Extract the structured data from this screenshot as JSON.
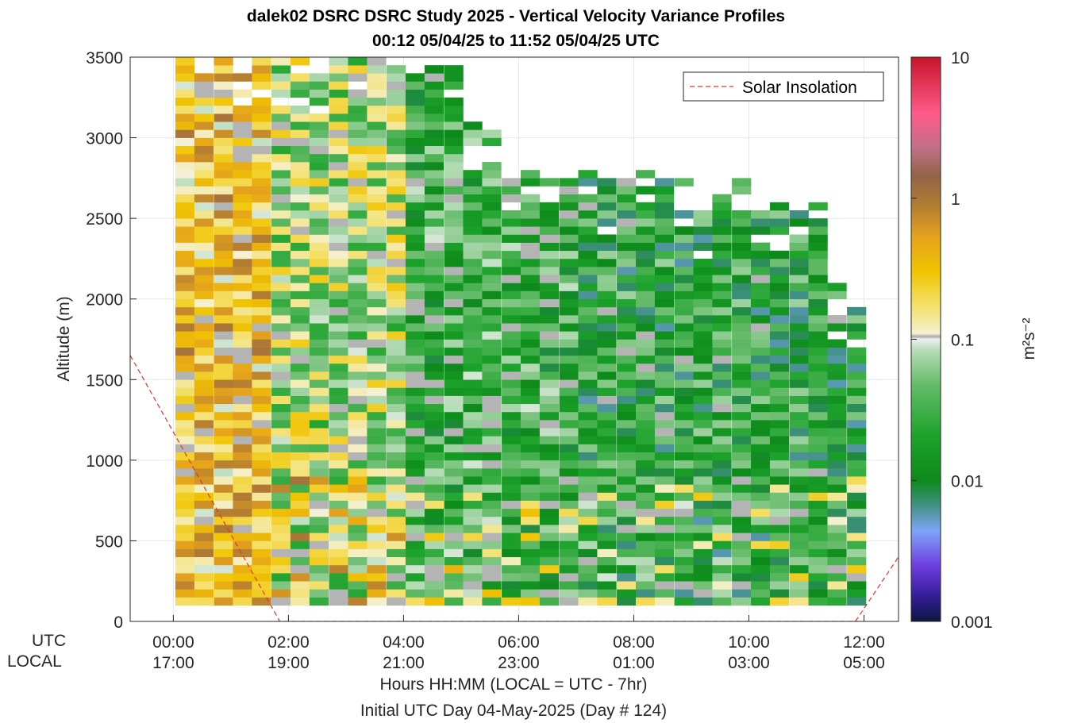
{
  "title_line1": "dalek02 DSRC DSRC Study 2025 - Vertical Velocity Variance Profiles",
  "title_line2": "00:12 05/04/25 to 11:52 05/04/25  UTC",
  "bottom_rows": {
    "utc": "UTC",
    "local": "LOCAL"
  },
  "xlabel_line1": "Hours HH:MM  (LOCAL = UTC - 7hr)",
  "xlabel_line2": "Initial UTC Day 04-May-2025 (Day # 124)",
  "chart_data": {
    "type": "heatmap",
    "title": "dalek02 DSRC DSRC Study 2025 - Vertical Velocity Variance Profiles",
    "ylabel": "Altitude (m)",
    "xlabel": "Hours HH:MM  (LOCAL = UTC - 7hr)",
    "xlim_hours_utc": [
      -0.75,
      12.6
    ],
    "ylim": [
      0,
      3500
    ],
    "yticks": [
      0,
      500,
      1000,
      1500,
      2000,
      2500,
      3000,
      3500
    ],
    "xticks": [
      {
        "hour": 0,
        "utc": "00:00",
        "local": "17:00"
      },
      {
        "hour": 2,
        "utc": "02:00",
        "local": "19:00"
      },
      {
        "hour": 4,
        "utc": "04:00",
        "local": "21:00"
      },
      {
        "hour": 6,
        "utc": "06:00",
        "local": "23:00"
      },
      {
        "hour": 8,
        "utc": "08:00",
        "local": "01:00"
      },
      {
        "hour": 10,
        "utc": "10:00",
        "local": "03:00"
      },
      {
        "hour": 12,
        "utc": "12:00",
        "local": "05:00"
      }
    ],
    "colorbar": {
      "label": "m²s⁻²",
      "scale": "log",
      "range": [
        0.001,
        10
      ],
      "tick_labels": [
        "0.001",
        "0.01",
        "0.1",
        "1",
        "10"
      ],
      "tick_values": [
        0.001,
        0.01,
        0.1,
        1,
        10
      ]
    },
    "legend": {
      "position": "top-right",
      "entries": [
        {
          "name": "Solar Insolation",
          "color": "#e8302a",
          "style": "dashed"
        }
      ]
    },
    "grid": true,
    "profile_times_utc_hours": [
      0.2,
      0.53,
      0.87,
      1.2,
      1.53,
      1.87,
      2.2,
      2.53,
      2.87,
      3.2,
      3.53,
      3.87,
      4.2,
      4.53,
      4.87,
      5.2,
      5.53,
      5.87,
      6.2,
      6.53,
      6.87,
      7.2,
      7.53,
      7.87,
      8.2,
      8.53,
      8.87,
      9.2,
      9.53,
      9.87,
      10.2,
      10.53,
      10.87,
      11.2,
      11.53,
      11.87
    ],
    "profile_top_altitude_m": [
      3500,
      3500,
      3500,
      3500,
      3500,
      3500,
      3500,
      3500,
      3500,
      3500,
      3500,
      3450,
      3450,
      3450,
      3450,
      3150,
      3050,
      2800,
      2800,
      2800,
      2750,
      2800,
      2750,
      2750,
      2800,
      2800,
      2750,
      2600,
      2650,
      2750,
      2600,
      2600,
      2600,
      2600,
      2100,
      2050
    ],
    "altitude_bin_m": 50,
    "lowest_altitude_m": 100,
    "variance_description_by_period": [
      {
        "utc_hours": [
          0.2,
          1.6
        ],
        "typical_variance_m2s2": 0.3
      },
      {
        "utc_hours": [
          1.6,
          4.0
        ],
        "typical_variance_m2s2": 0.08
      },
      {
        "utc_hours": [
          4.0,
          7.0
        ],
        "typical_variance_m2s2": 0.03
      },
      {
        "utc_hours": [
          7.0,
          11.9
        ],
        "typical_variance_m2s2": 0.02
      }
    ],
    "solar_insolation_line_utc_hours": [
      -0.75,
      1.85,
      11.85,
      12.6
    ],
    "solar_insolation_line_altitude_m": [
      1650,
      0,
      0,
      400
    ]
  }
}
